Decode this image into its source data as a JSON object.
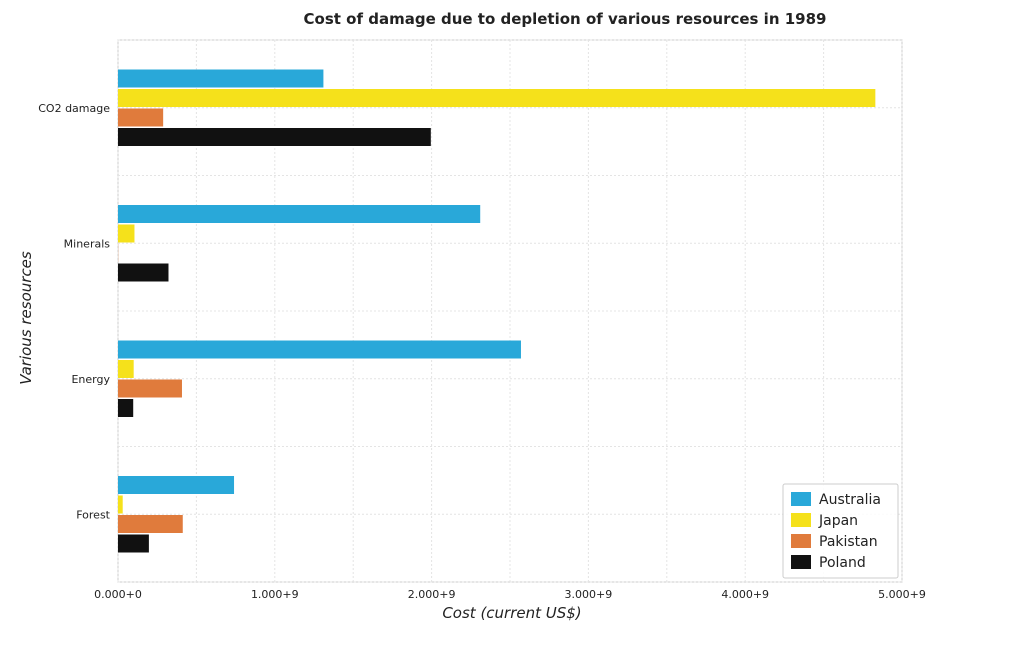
{
  "chart_data": {
    "type": "bar",
    "orientation": "horizontal",
    "title": "Cost of damage due to depletion of various resources in 1989",
    "xlabel": "Cost (current US$)",
    "ylabel": "Various resources",
    "categories": [
      "CO2 damage",
      "Minerals",
      "Energy",
      "Forest"
    ],
    "xlim": [
      0,
      5000000000
    ],
    "xticks": [
      0,
      1000000000,
      2000000000,
      3000000000,
      4000000000,
      5000000000
    ],
    "xtick_labels": [
      "0.000+0",
      "1.000+9",
      "2.000+9",
      "3.000+9",
      "4.000+9",
      "5.000+9"
    ],
    "grid": true,
    "legend_position": "bottom-right",
    "series": [
      {
        "name": "Australia",
        "color": "#29a8d9",
        "values": [
          1310000000,
          2310000000,
          2570000000,
          740000000
        ]
      },
      {
        "name": "Japan",
        "color": "#f5e11b",
        "values": [
          4830000000,
          105000000,
          100000000,
          30000000
        ]
      },
      {
        "name": "Pakistan",
        "color": "#e07b3c",
        "values": [
          288000000,
          1000000,
          408000000,
          413000000
        ]
      },
      {
        "name": "Poland",
        "color": "#111111",
        "values": [
          1995000000,
          322000000,
          97000000,
          197000000
        ]
      }
    ]
  }
}
